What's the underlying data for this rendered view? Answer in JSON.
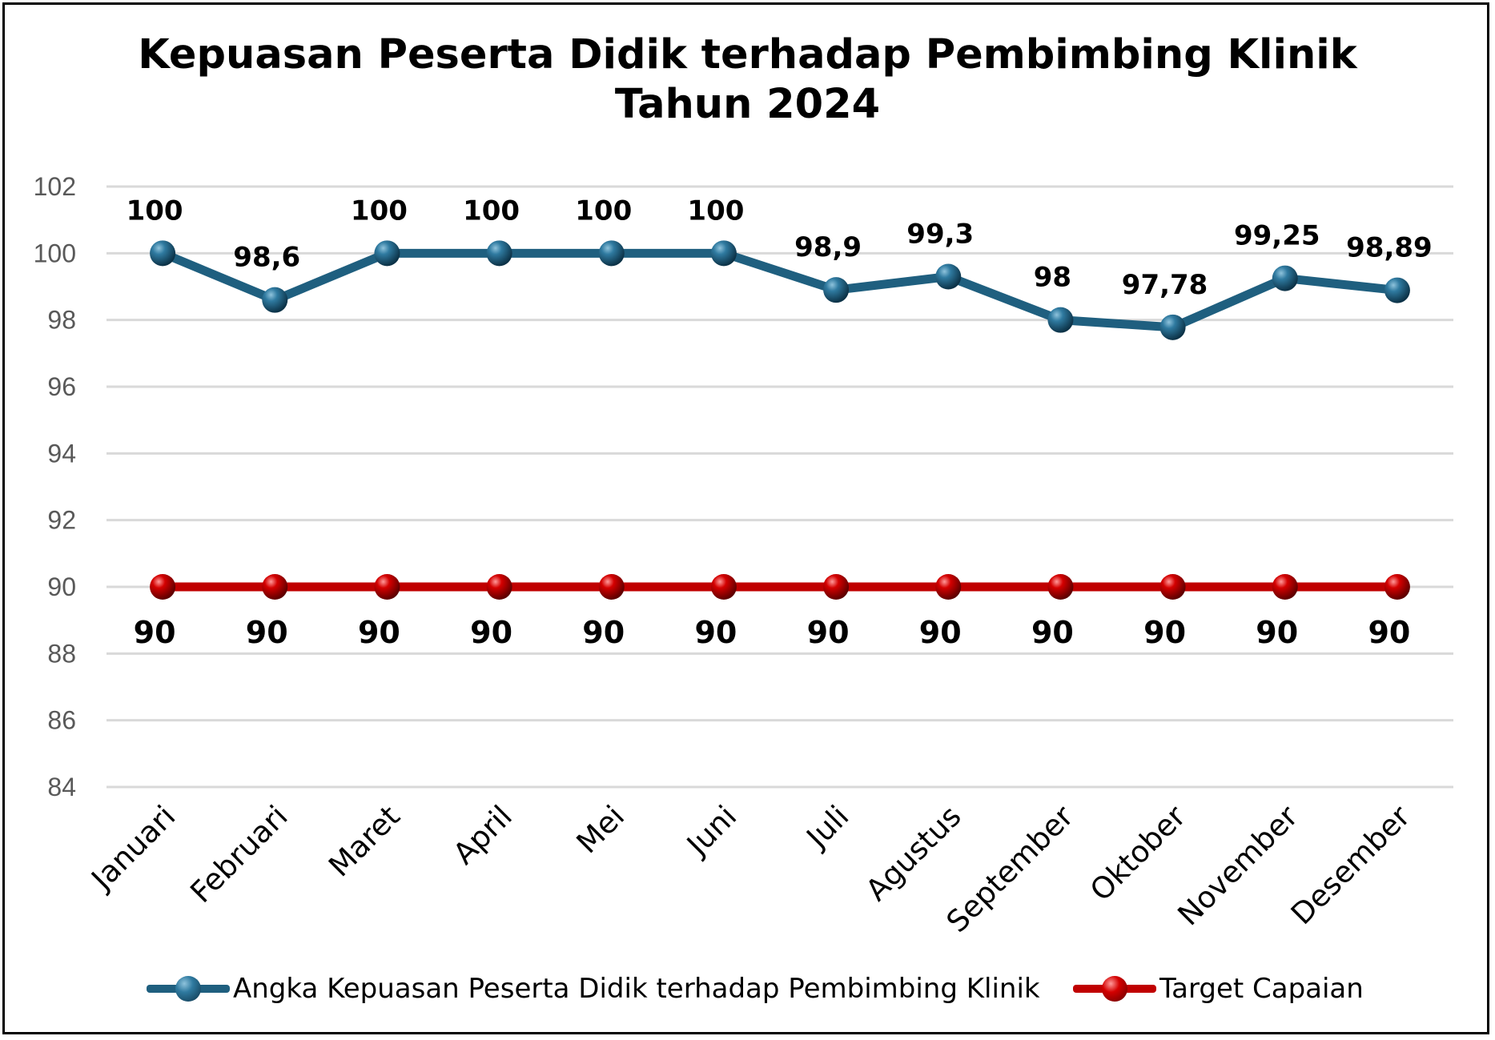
{
  "chart_data": {
    "type": "line",
    "title": "Kepuasan Peserta Didik terhadap Pembimbing Klinik",
    "subtitle": "Tahun 2024",
    "categories": [
      "Januari",
      "Februari",
      "Maret",
      "April",
      "Mei",
      "Juni",
      "Juli",
      "Agustus",
      "September",
      "Oktober",
      "November",
      "Desember"
    ],
    "series": [
      {
        "name": "Angka Kepuasan Peserta Didik terhadap Pembimbing Klinik",
        "values": [
          100,
          98.6,
          100,
          100,
          100,
          100,
          98.9,
          99.3,
          98,
          97.78,
          99.25,
          98.89
        ],
        "labels": [
          "100",
          "98,6",
          "100",
          "100",
          "100",
          "100",
          "98,9",
          "99,3",
          "98",
          "97,78",
          "99,25",
          "98,89"
        ],
        "color": "#1f5f7f"
      },
      {
        "name": "Target Capaian",
        "values": [
          90,
          90,
          90,
          90,
          90,
          90,
          90,
          90,
          90,
          90,
          90,
          90
        ],
        "labels": [
          "90",
          "90",
          "90",
          "90",
          "90",
          "90",
          "90",
          "90",
          "90",
          "90",
          "90",
          "90"
        ],
        "color": "#c00000"
      }
    ],
    "yticks": [
      "84",
      "86",
      "88",
      "90",
      "92",
      "94",
      "96",
      "98",
      "100",
      "102"
    ],
    "ylim": [
      84,
      102
    ],
    "grid": true,
    "legend_position": "bottom"
  }
}
